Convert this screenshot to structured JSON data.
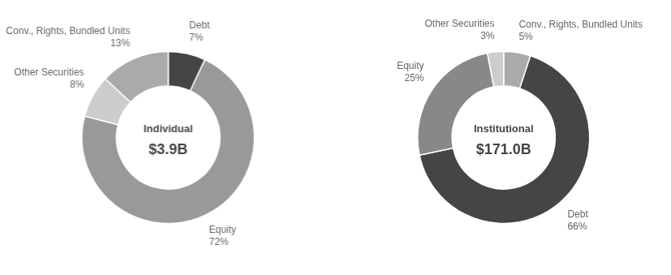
{
  "chart_data": [
    {
      "type": "doughnut",
      "title": "Individual",
      "subtitle": "$3.9B",
      "categories": [
        "Debt",
        "Equity",
        "Other Securities",
        "Conv., Rights, Bundled Units"
      ],
      "values": [
        7,
        72,
        8,
        13
      ],
      "value_labels": [
        "7%",
        "72%",
        "8%",
        "13%"
      ],
      "colors": [
        "#454545",
        "#999999",
        "#cccccc",
        "#aaaaaa"
      ],
      "data_labels": true
    },
    {
      "type": "doughnut",
      "title": "Institutional",
      "subtitle": "$171.0B",
      "categories": [
        "Conv., Rights, Bundled Units",
        "Debt",
        "Equity",
        "Other Securities"
      ],
      "values": [
        5,
        66,
        25,
        3
      ],
      "value_labels": [
        "5%",
        "66%",
        "25%",
        "3%"
      ],
      "colors": [
        "#aaaaaa",
        "#454545",
        "#888888",
        "#cccccc"
      ],
      "data_labels": true
    }
  ]
}
